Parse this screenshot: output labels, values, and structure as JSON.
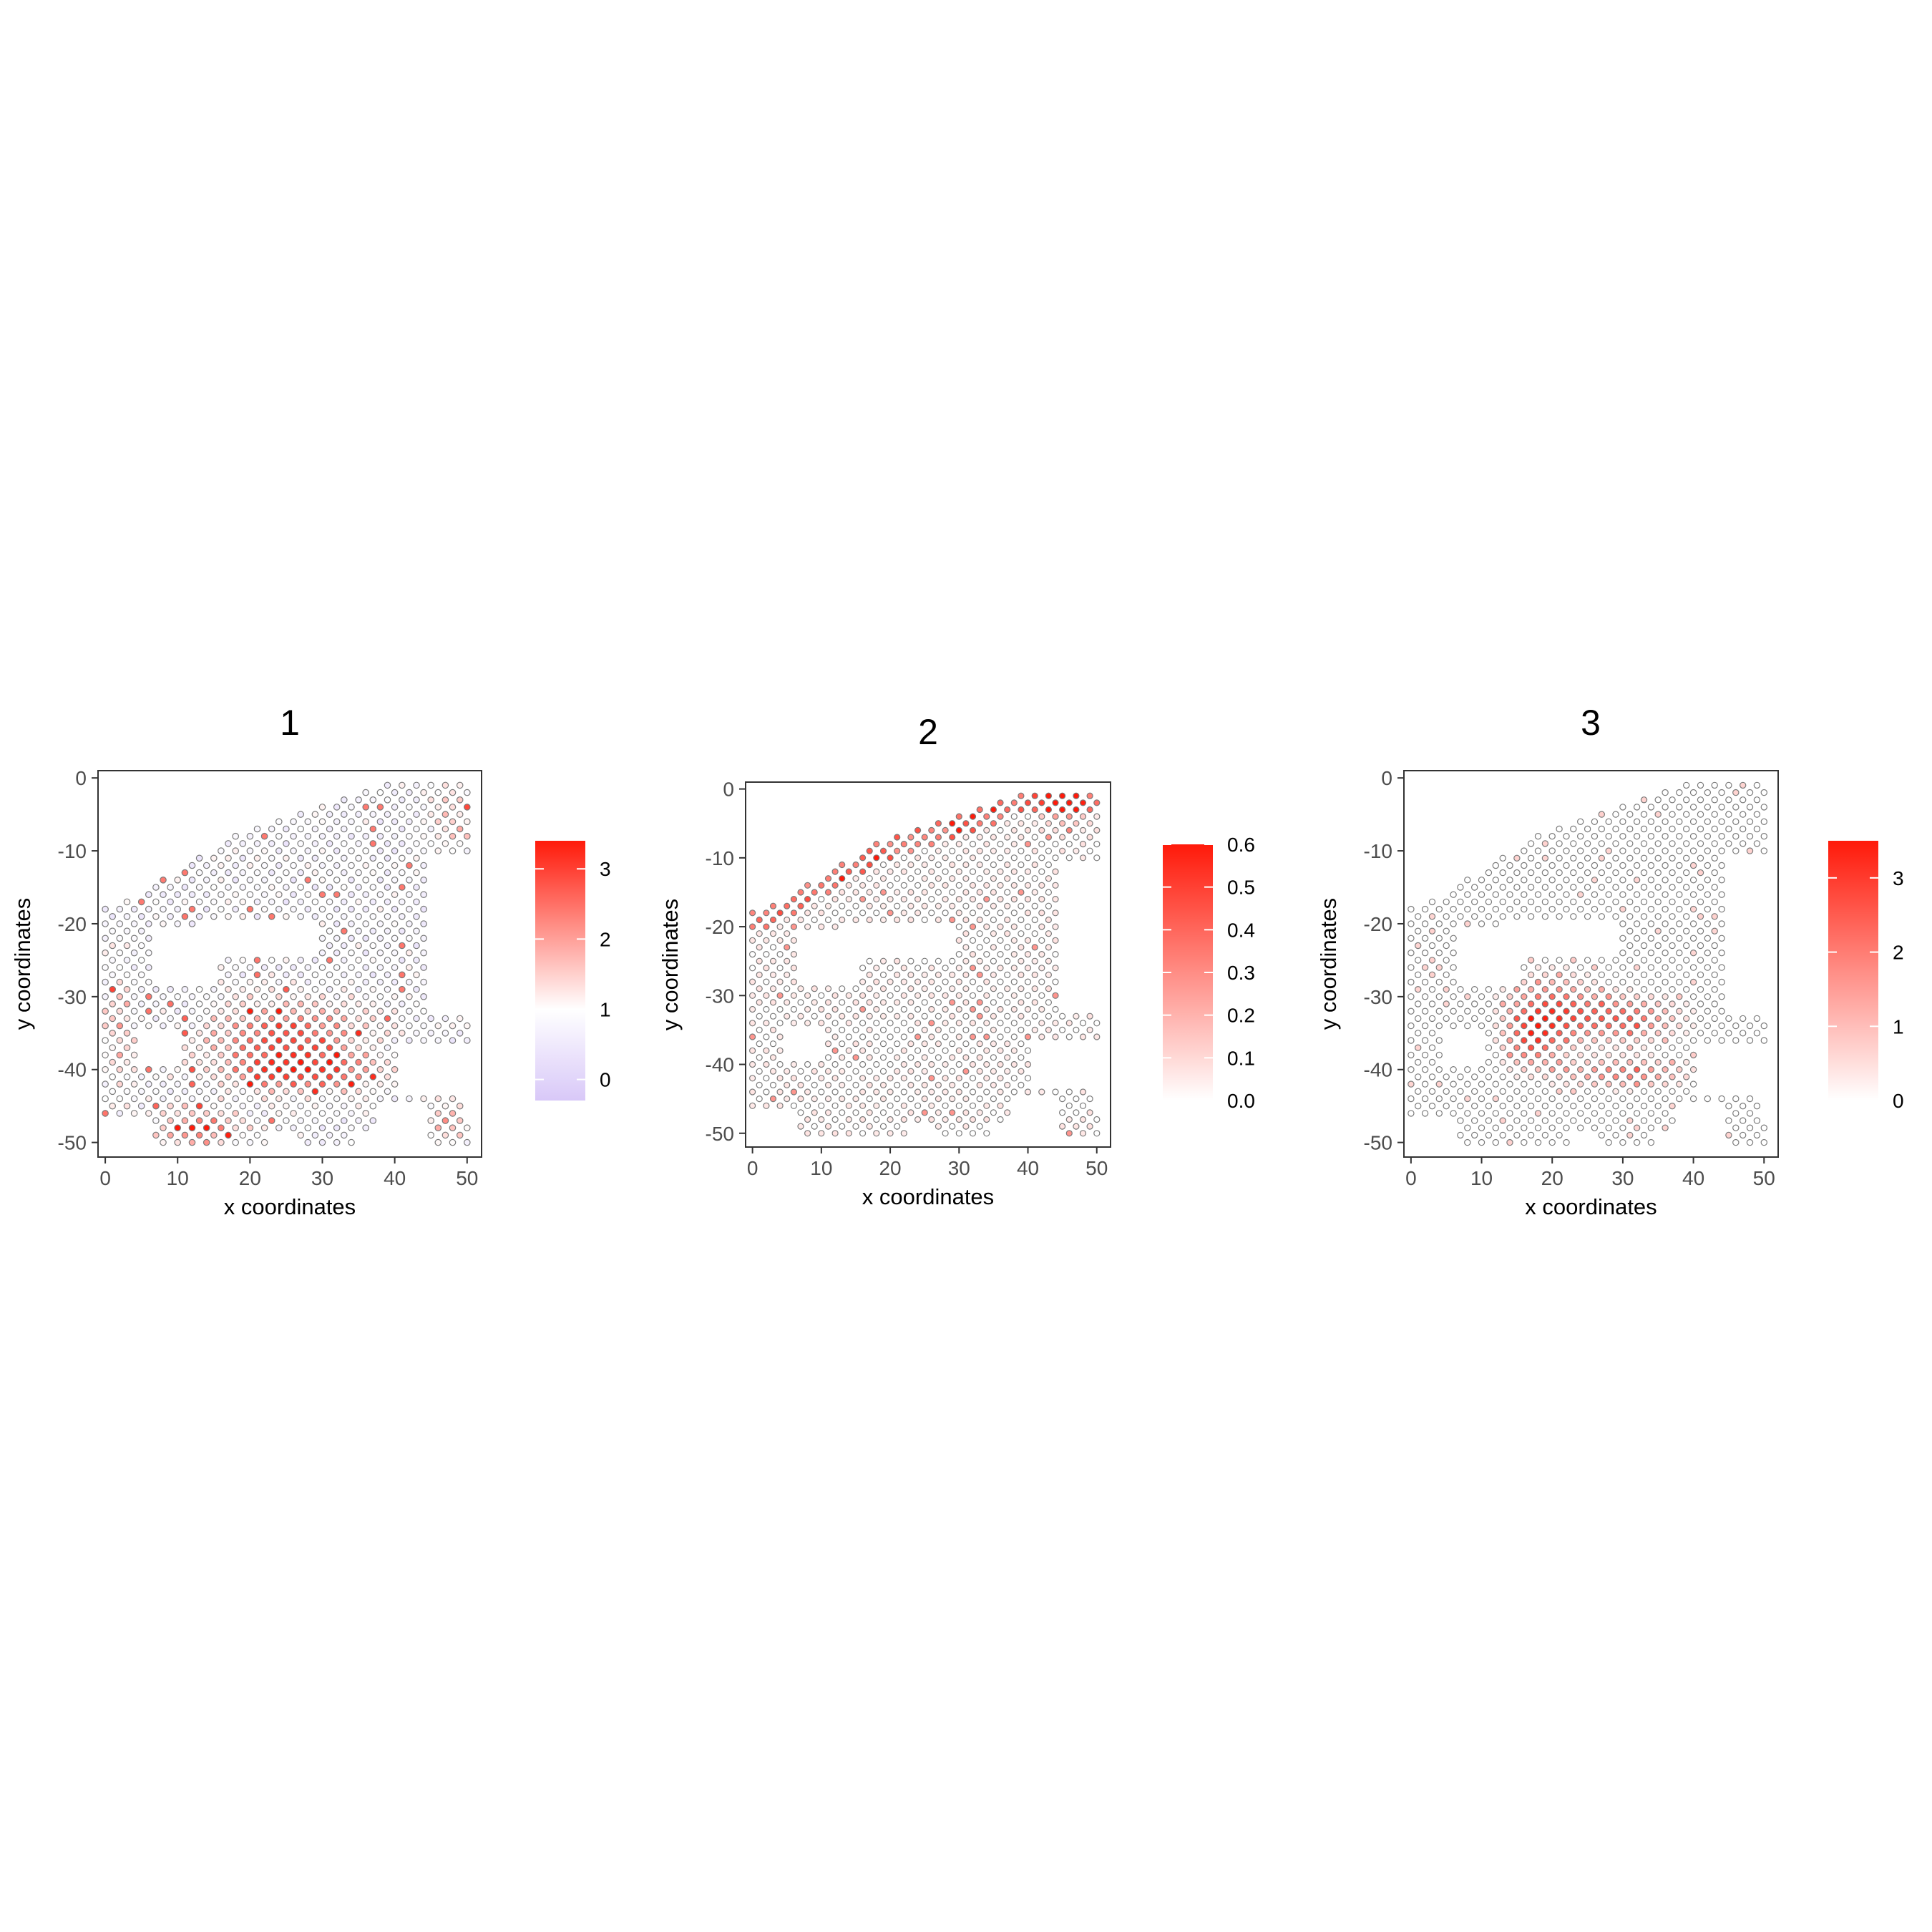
{
  "chart_data": [
    {
      "type": "scatter",
      "title": "1",
      "xlabel": "x coordinates",
      "ylabel": "y coordinates",
      "xlim": [
        -1,
        52
      ],
      "ylim": [
        -52,
        1
      ],
      "xticks": [
        0,
        10,
        20,
        30,
        40,
        50
      ],
      "yticks": [
        0,
        -10,
        -20,
        -30,
        -40,
        -50
      ],
      "grid": false,
      "color_scale": {
        "low": "#d8c8f8",
        "mid": "#ffffff",
        "high": "#ff1a0a",
        "min": -0.3,
        "mid_value": 1,
        "max": 3.4,
        "ticks": [
          0,
          1,
          2,
          3
        ],
        "tick_labels": [
          "0",
          "1",
          "2",
          "3"
        ]
      },
      "legend_position": "right",
      "pattern": "spot-grid expression: broad lilac/low background with a high band around x 15-37, y -30 to -42 and a high lower-left cluster near x 8-22, y -45 to -50",
      "hotspots": [
        [
          25,
          -36,
          2.9
        ],
        [
          27,
          -40,
          2.4
        ],
        [
          14,
          -47,
          2.3
        ],
        [
          3,
          -32,
          1.8
        ],
        [
          47,
          -47,
          2.2
        ],
        [
          48,
          -8,
          1.6
        ]
      ],
      "series": [
        {
          "values_summary": "range 0 to 3.4"
        }
      ]
    },
    {
      "type": "scatter",
      "title": "2",
      "xlabel": "x coordinates",
      "ylabel": "y coordinates",
      "xlim": [
        -1,
        52
      ],
      "ylim": [
        -52,
        1
      ],
      "xticks": [
        0,
        10,
        20,
        30,
        40,
        50
      ],
      "yticks": [
        0,
        -10,
        -20,
        -30,
        -40,
        -50
      ],
      "grid": false,
      "color_scale": {
        "low": "#ffffff",
        "high": "#ff1a0a",
        "min": 0,
        "max": 0.6,
        "ticks": [
          0,
          0.1,
          0.2,
          0.3,
          0.4,
          0.5,
          0.6
        ],
        "tick_labels": [
          "0.0",
          "0.1",
          "0.2",
          "0.3",
          "0.4",
          "0.5",
          "0.6"
        ]
      },
      "legend_position": "right",
      "pattern": "mostly near-zero values; moderate values along the upper-left to upper-right tissue edge, peak near x 45, y -2",
      "hotspots": [
        [
          45,
          -2,
          0.6
        ],
        [
          46,
          -46,
          0.55
        ],
        [
          24,
          -6,
          0.45
        ],
        [
          8,
          -16,
          0.35
        ]
      ],
      "series": [
        {
          "values_summary": "range 0 to 0.6"
        }
      ]
    },
    {
      "type": "scatter",
      "title": "3",
      "xlabel": "x coordinates",
      "ylabel": "y coordinates",
      "xlim": [
        -1,
        52
      ],
      "ylim": [
        -52,
        1
      ],
      "xticks": [
        0,
        10,
        20,
        30,
        40,
        50
      ],
      "yticks": [
        0,
        -10,
        -20,
        -30,
        -40,
        -50
      ],
      "grid": false,
      "color_scale": {
        "low": "#ffffff",
        "high": "#ff1a0a",
        "min": 0,
        "max": 3.5,
        "ticks": [
          0,
          1,
          2,
          3
        ],
        "tick_labels": [
          "0",
          "1",
          "2",
          "3"
        ]
      },
      "legend_position": "right",
      "pattern": "mostly zero; high ring-shaped region around x 15-37, y -28 to -42",
      "hotspots": [
        [
          21,
          -31,
          3.2
        ],
        [
          28,
          -33,
          3.0
        ],
        [
          16,
          -36,
          2.8
        ],
        [
          31,
          -40,
          2.4
        ],
        [
          42,
          -31,
          2.2
        ]
      ],
      "series": [
        {
          "values_summary": "range 0 to 3.5"
        }
      ]
    }
  ]
}
